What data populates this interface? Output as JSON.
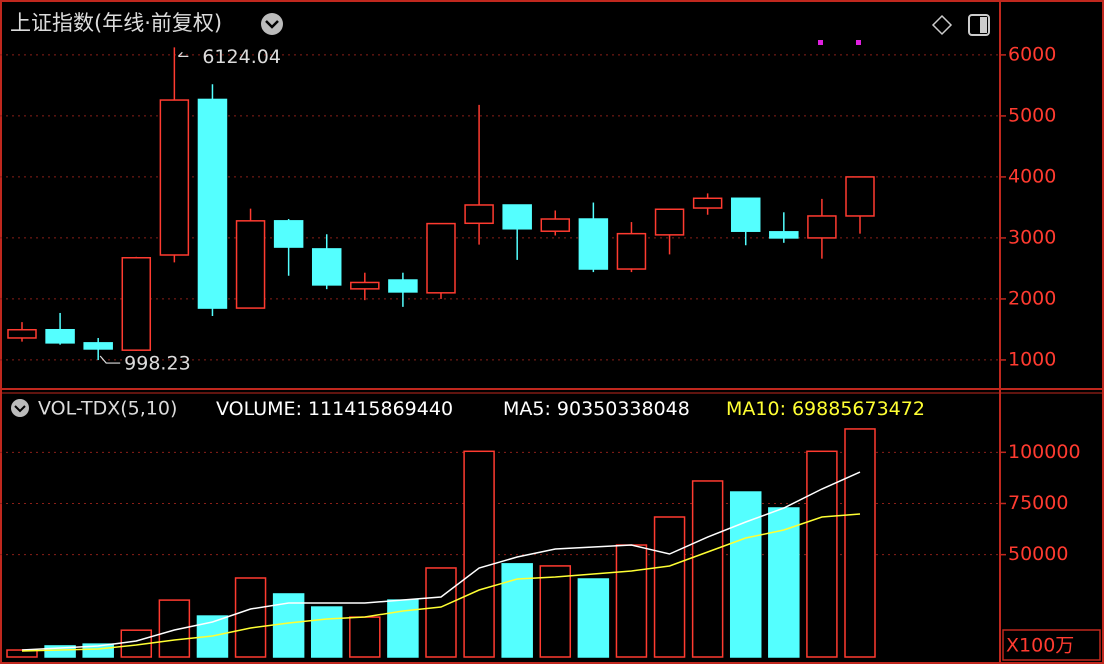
{
  "chart_data": [
    {
      "type": "candlestick",
      "title": "上证指数(年线·前复权)",
      "open": [
        1360,
        1495,
        1280,
        1160,
        2720,
        5270,
        1850,
        3280,
        2820,
        2165,
        2310,
        2100,
        3240,
        3540,
        3110,
        3310,
        2490,
        3050,
        3490,
        3650,
        3100,
        3000,
        3360
      ],
      "high": [
        1620,
        1770,
        1360,
        2690,
        6124.04,
        5520,
        3480,
        3310,
        3060,
        2430,
        2430,
        3240,
        5180,
        3540,
        3450,
        3580,
        3260,
        3470,
        3730,
        3650,
        3420,
        3640,
        4000
      ],
      "low": [
        1300,
        1250,
        998.23,
        1150,
        2600,
        1720,
        1850,
        2380,
        2160,
        1980,
        1870,
        2000,
        2890,
        2640,
        3040,
        2440,
        2440,
        2730,
        3380,
        2880,
        2920,
        2660,
        3070
      ],
      "close": [
        1495,
        1280,
        1180,
        2675,
        5260,
        1850,
        3280,
        2850,
        2230,
        2270,
        2115,
        3235,
        3540,
        3150,
        3310,
        2490,
        3070,
        3470,
        3650,
        3110,
        3000,
        3360,
        4000
      ],
      "up_color": "#ff3b30",
      "down_color": "#54ffff",
      "ylim": [
        540,
        6900
      ],
      "yticks": [
        1000,
        2000,
        3000,
        4000,
        5000,
        6000
      ],
      "grid": true
    },
    {
      "type": "volume",
      "title": "VOL-TDX(5,10)",
      "readouts": [
        {
          "label": "VOLUME:",
          "value": 111415869440,
          "color": "#ffffff"
        },
        {
          "label": "MA5:",
          "value": 90350338048,
          "color": "#ffffff"
        },
        {
          "label": "MA10:",
          "value": 69885673472,
          "color": "#ffff33"
        }
      ],
      "values": [
        3400,
        5400,
        6300,
        13100,
        27800,
        20000,
        38600,
        30800,
        24400,
        19500,
        27800,
        43500,
        100500,
        45500,
        44500,
        38100,
        54700,
        68400,
        86000,
        80600,
        72800,
        100500,
        111416
      ],
      "lines": [
        {
          "color": "#ffffff",
          "values": [
            3420,
            4400,
            5370,
            7820,
            13190,
            17100,
            23450,
            26380,
            26380,
            26380,
            27840,
            29310,
            43480,
            48850,
            52760,
            53740,
            54710,
            50310,
            58620,
            65950,
            72790,
            82070,
            90350
          ]
        },
        {
          "color": "#ffff33",
          "values": [
            2930,
            3420,
            3910,
            5860,
            8300,
            10260,
            14170,
            16610,
            18560,
            19540,
            22470,
            24420,
            32730,
            38100,
            39080,
            40550,
            42010,
            44450,
            51290,
            58130,
            62040,
            68390,
            69886
          ]
        }
      ],
      "unit": "X100万",
      "ylim": [
        0,
        128000
      ],
      "yticks": [
        50000,
        75000,
        100000
      ],
      "grid": true
    }
  ]
}
